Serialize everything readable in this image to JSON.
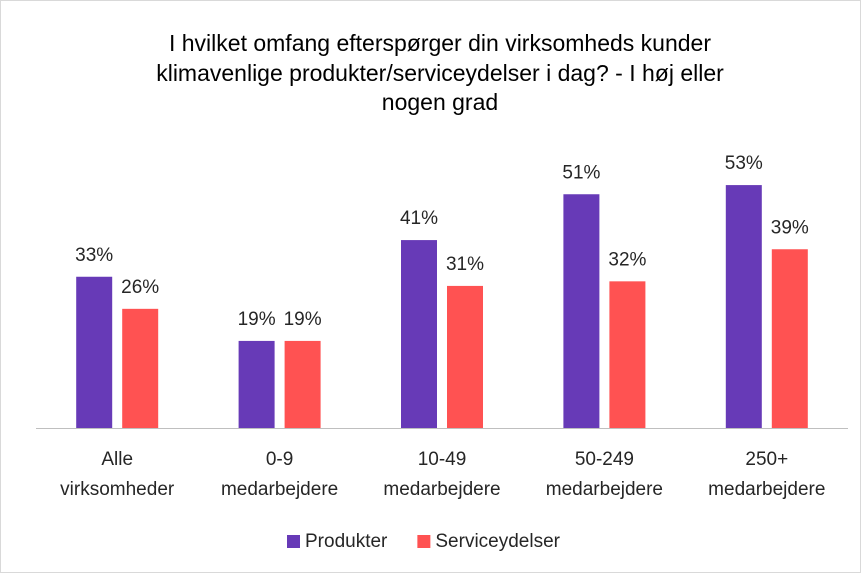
{
  "chart_data": {
    "type": "bar",
    "title": [
      "I hvilket omfang efterspørger din virksomheds kunder",
      "klimavenlige produkter/serviceydelser i dag? - I høj eller",
      "nogen grad"
    ],
    "categories": [
      [
        "Alle",
        "virksomheder"
      ],
      [
        "0-9",
        "medarbejdere"
      ],
      [
        "10-49",
        "medarbejdere"
      ],
      [
        "50-249",
        "medarbejdere"
      ],
      [
        "250+",
        "medarbejdere"
      ]
    ],
    "series": [
      {
        "name": "Produkter",
        "color": "#673ab7",
        "values": [
          33,
          19,
          41,
          51,
          53
        ],
        "value_labels": [
          "33%",
          "19%",
          "41%",
          "51%",
          "53%"
        ]
      },
      {
        "name": "Serviceydelser",
        "color": "#ff5252",
        "values": [
          26,
          19,
          31,
          32,
          39
        ],
        "value_labels": [
          "26%",
          "19%",
          "31%",
          "32%",
          "39%"
        ]
      }
    ],
    "ylim": [
      0,
      60
    ],
    "legend": "bottom"
  }
}
